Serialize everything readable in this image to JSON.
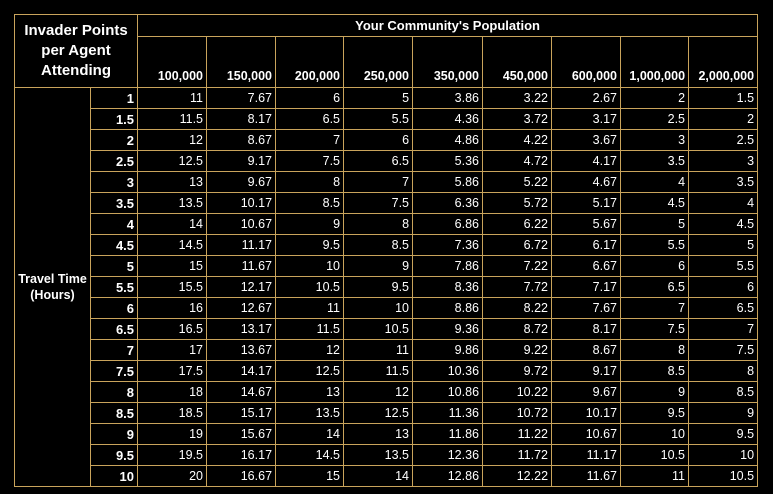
{
  "table": {
    "corner": "Invader Points per Agent Attending",
    "column_group": "Your Community's Population",
    "columns": [
      "100,000",
      "150,000",
      "200,000",
      "250,000",
      "350,000",
      "450,000",
      "600,000",
      "1,000,000",
      "2,000,000"
    ],
    "row_group": "Travel Time (Hours)",
    "rows": [
      [
        "1",
        "11",
        "7.67",
        "6",
        "5",
        "3.86",
        "3.22",
        "2.67",
        "2",
        "1.5"
      ],
      [
        "1.5",
        "11.5",
        "8.17",
        "6.5",
        "5.5",
        "4.36",
        "3.72",
        "3.17",
        "2.5",
        "2"
      ],
      [
        "2",
        "12",
        "8.67",
        "7",
        "6",
        "4.86",
        "4.22",
        "3.67",
        "3",
        "2.5"
      ],
      [
        "2.5",
        "12.5",
        "9.17",
        "7.5",
        "6.5",
        "5.36",
        "4.72",
        "4.17",
        "3.5",
        "3"
      ],
      [
        "3",
        "13",
        "9.67",
        "8",
        "7",
        "5.86",
        "5.22",
        "4.67",
        "4",
        "3.5"
      ],
      [
        "3.5",
        "13.5",
        "10.17",
        "8.5",
        "7.5",
        "6.36",
        "5.72",
        "5.17",
        "4.5",
        "4"
      ],
      [
        "4",
        "14",
        "10.67",
        "9",
        "8",
        "6.86",
        "6.22",
        "5.67",
        "5",
        "4.5"
      ],
      [
        "4.5",
        "14.5",
        "11.17",
        "9.5",
        "8.5",
        "7.36",
        "6.72",
        "6.17",
        "5.5",
        "5"
      ],
      [
        "5",
        "15",
        "11.67",
        "10",
        "9",
        "7.86",
        "7.22",
        "6.67",
        "6",
        "5.5"
      ],
      [
        "5.5",
        "15.5",
        "12.17",
        "10.5",
        "9.5",
        "8.36",
        "7.72",
        "7.17",
        "6.5",
        "6"
      ],
      [
        "6",
        "16",
        "12.67",
        "11",
        "10",
        "8.86",
        "8.22",
        "7.67",
        "7",
        "6.5"
      ],
      [
        "6.5",
        "16.5",
        "13.17",
        "11.5",
        "10.5",
        "9.36",
        "8.72",
        "8.17",
        "7.5",
        "7"
      ],
      [
        "7",
        "17",
        "13.67",
        "12",
        "11",
        "9.86",
        "9.22",
        "8.67",
        "8",
        "7.5"
      ],
      [
        "7.5",
        "17.5",
        "14.17",
        "12.5",
        "11.5",
        "10.36",
        "9.72",
        "9.17",
        "8.5",
        "8"
      ],
      [
        "8",
        "18",
        "14.67",
        "13",
        "12",
        "10.86",
        "10.22",
        "9.67",
        "9",
        "8.5"
      ],
      [
        "8.5",
        "18.5",
        "15.17",
        "13.5",
        "12.5",
        "11.36",
        "10.72",
        "10.17",
        "9.5",
        "9"
      ],
      [
        "9",
        "19",
        "15.67",
        "14",
        "13",
        "11.86",
        "11.22",
        "10.67",
        "10",
        "9.5"
      ],
      [
        "9.5",
        "19.5",
        "16.17",
        "14.5",
        "13.5",
        "12.36",
        "11.72",
        "11.17",
        "10.5",
        "10"
      ],
      [
        "10",
        "20",
        "16.67",
        "15",
        "14",
        "12.86",
        "12.22",
        "11.67",
        "11",
        "10.5"
      ]
    ]
  }
}
